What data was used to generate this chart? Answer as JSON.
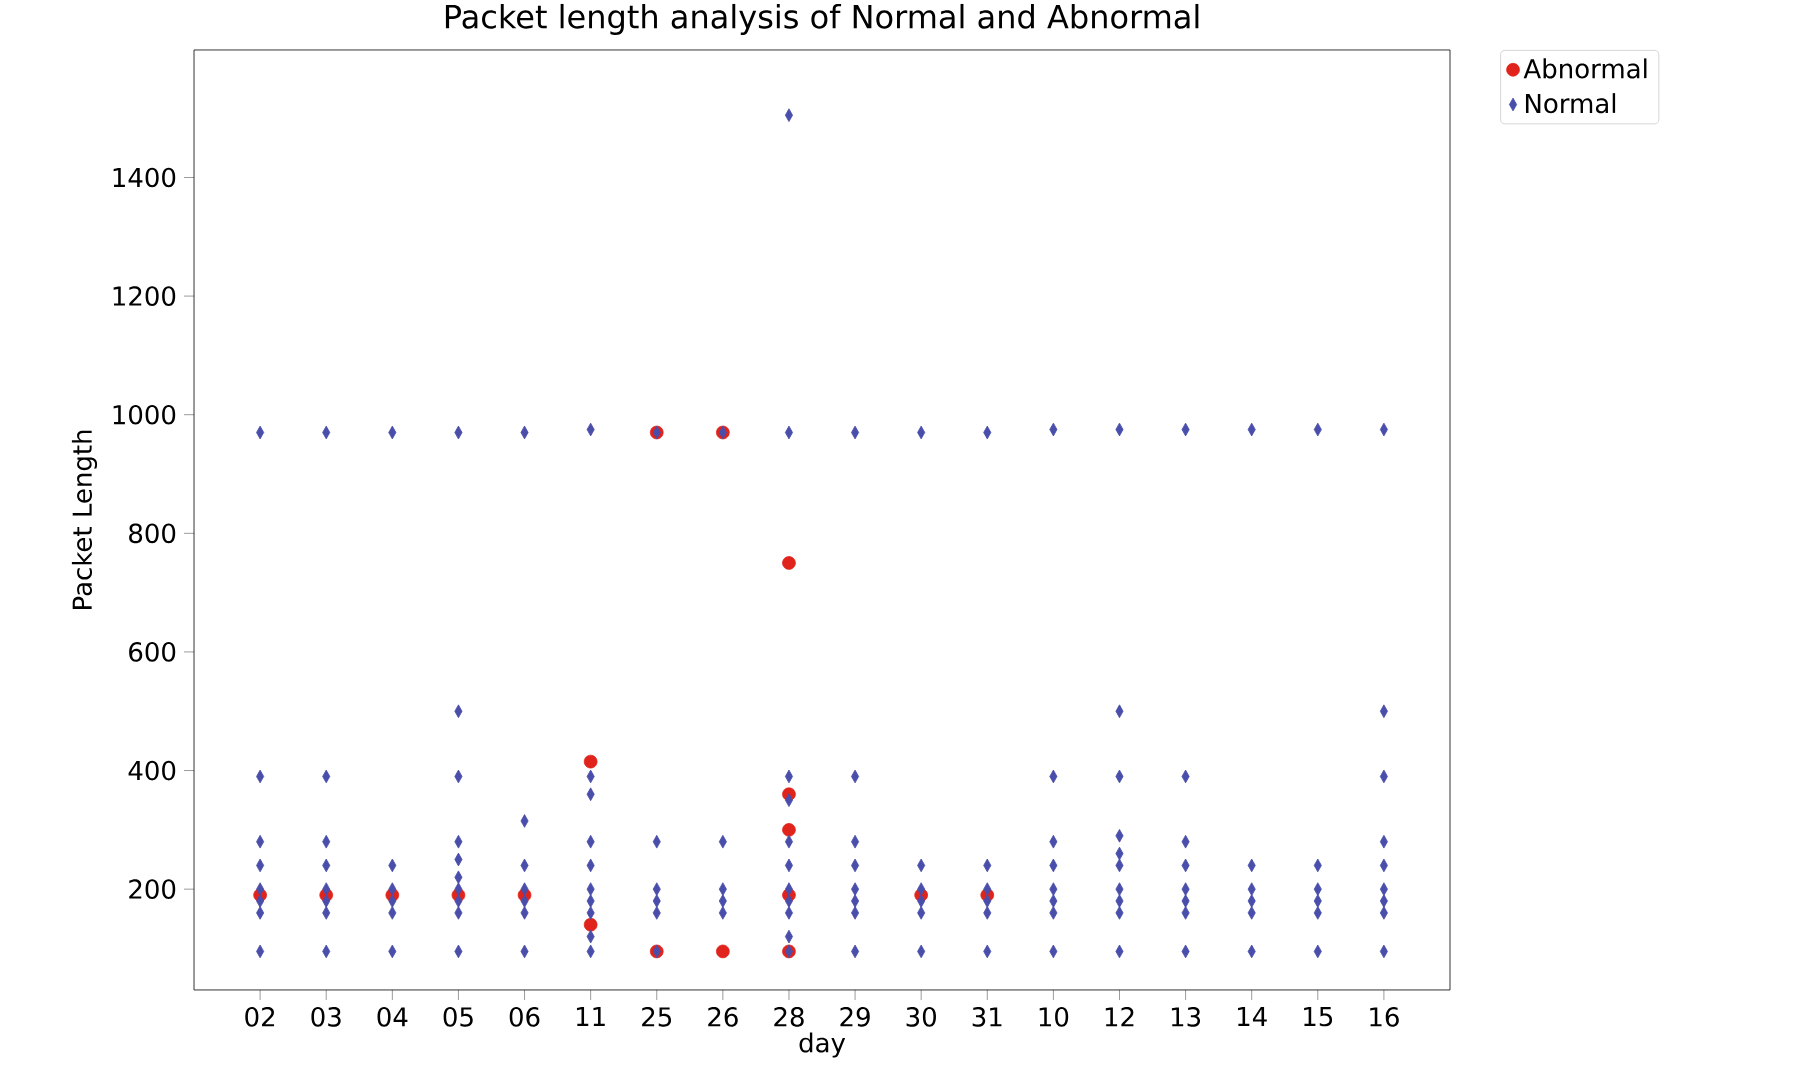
{
  "chart_data": {
    "type": "scatter",
    "title": "Packet length analysis of Normal and Abnormal",
    "xlabel": "day",
    "ylabel": "Packet Length",
    "categories": [
      "02",
      "03",
      "04",
      "05",
      "06",
      "11",
      "25",
      "26",
      "28",
      "29",
      "30",
      "31",
      "10",
      "12",
      "13",
      "14",
      "15",
      "16"
    ],
    "ylim": [
      30,
      1615
    ],
    "yticks": [
      200,
      400,
      600,
      800,
      1000,
      1200,
      1400
    ],
    "grid": false,
    "legend": "top right",
    "series": [
      {
        "name": "Abnormal",
        "color": "#e0231b",
        "marker": "circle",
        "x": [
          "02",
          "03",
          "04",
          "05",
          "06",
          "11",
          "11",
          "25",
          "25",
          "26",
          "26",
          "28",
          "28",
          "28",
          "28",
          "28",
          "30",
          "31"
        ],
        "values": [
          190,
          190,
          190,
          190,
          190,
          415,
          140,
          970,
          95,
          970,
          95,
          750,
          360,
          300,
          190,
          95,
          190,
          190
        ]
      },
      {
        "name": "Normal",
        "color": "#4a4eab",
        "marker": "diamond",
        "x": [
          "02",
          "02",
          "02",
          "02",
          "02",
          "02",
          "02",
          "02",
          "03",
          "03",
          "03",
          "03",
          "03",
          "03",
          "03",
          "03",
          "04",
          "04",
          "04",
          "04",
          "04",
          "04",
          "05",
          "05",
          "05",
          "05",
          "05",
          "05",
          "05",
          "05",
          "05",
          "05",
          "06",
          "06",
          "06",
          "06",
          "06",
          "06",
          "06",
          "11",
          "11",
          "11",
          "11",
          "11",
          "11",
          "11",
          "11",
          "11",
          "11",
          "25",
          "25",
          "25",
          "25",
          "25",
          "25",
          "26",
          "26",
          "26",
          "26",
          "26",
          "28",
          "28",
          "28",
          "28",
          "28",
          "28",
          "28",
          "28",
          "28",
          "28",
          "28",
          "29",
          "29",
          "29",
          "29",
          "29",
          "29",
          "29",
          "29",
          "30",
          "30",
          "30",
          "30",
          "30",
          "30",
          "31",
          "31",
          "31",
          "31",
          "31",
          "31",
          "10",
          "10",
          "10",
          "10",
          "10",
          "10",
          "10",
          "10",
          "12",
          "12",
          "12",
          "12",
          "12",
          "12",
          "12",
          "12",
          "12",
          "12",
          "13",
          "13",
          "13",
          "13",
          "13",
          "13",
          "13",
          "13",
          "14",
          "14",
          "14",
          "14",
          "14",
          "14",
          "15",
          "15",
          "15",
          "15",
          "15",
          "15",
          "16",
          "16",
          "16",
          "16",
          "16",
          "16",
          "16",
          "16",
          "16"
        ],
        "values": [
          970,
          390,
          280,
          240,
          200,
          180,
          160,
          95,
          970,
          390,
          280,
          240,
          200,
          180,
          160,
          95,
          970,
          240,
          200,
          180,
          160,
          95,
          970,
          500,
          390,
          280,
          250,
          220,
          200,
          180,
          160,
          95,
          970,
          315,
          240,
          200,
          180,
          160,
          95,
          975,
          390,
          360,
          280,
          240,
          200,
          180,
          160,
          120,
          95,
          970,
          280,
          200,
          180,
          160,
          95,
          970,
          280,
          200,
          180,
          160,
          1505,
          970,
          390,
          350,
          280,
          240,
          200,
          180,
          160,
          120,
          95,
          970,
          390,
          280,
          240,
          200,
          180,
          160,
          95,
          970,
          240,
          200,
          180,
          160,
          95,
          970,
          240,
          200,
          180,
          160,
          95,
          975,
          390,
          280,
          240,
          200,
          180,
          160,
          95,
          975,
          500,
          390,
          290,
          260,
          240,
          200,
          180,
          160,
          95,
          975,
          390,
          280,
          240,
          200,
          180,
          160,
          95,
          975,
          240,
          200,
          180,
          160,
          95,
          975,
          240,
          200,
          180,
          160,
          95,
          975,
          500,
          390,
          280,
          240,
          200,
          180,
          160,
          95
        ]
      }
    ]
  }
}
